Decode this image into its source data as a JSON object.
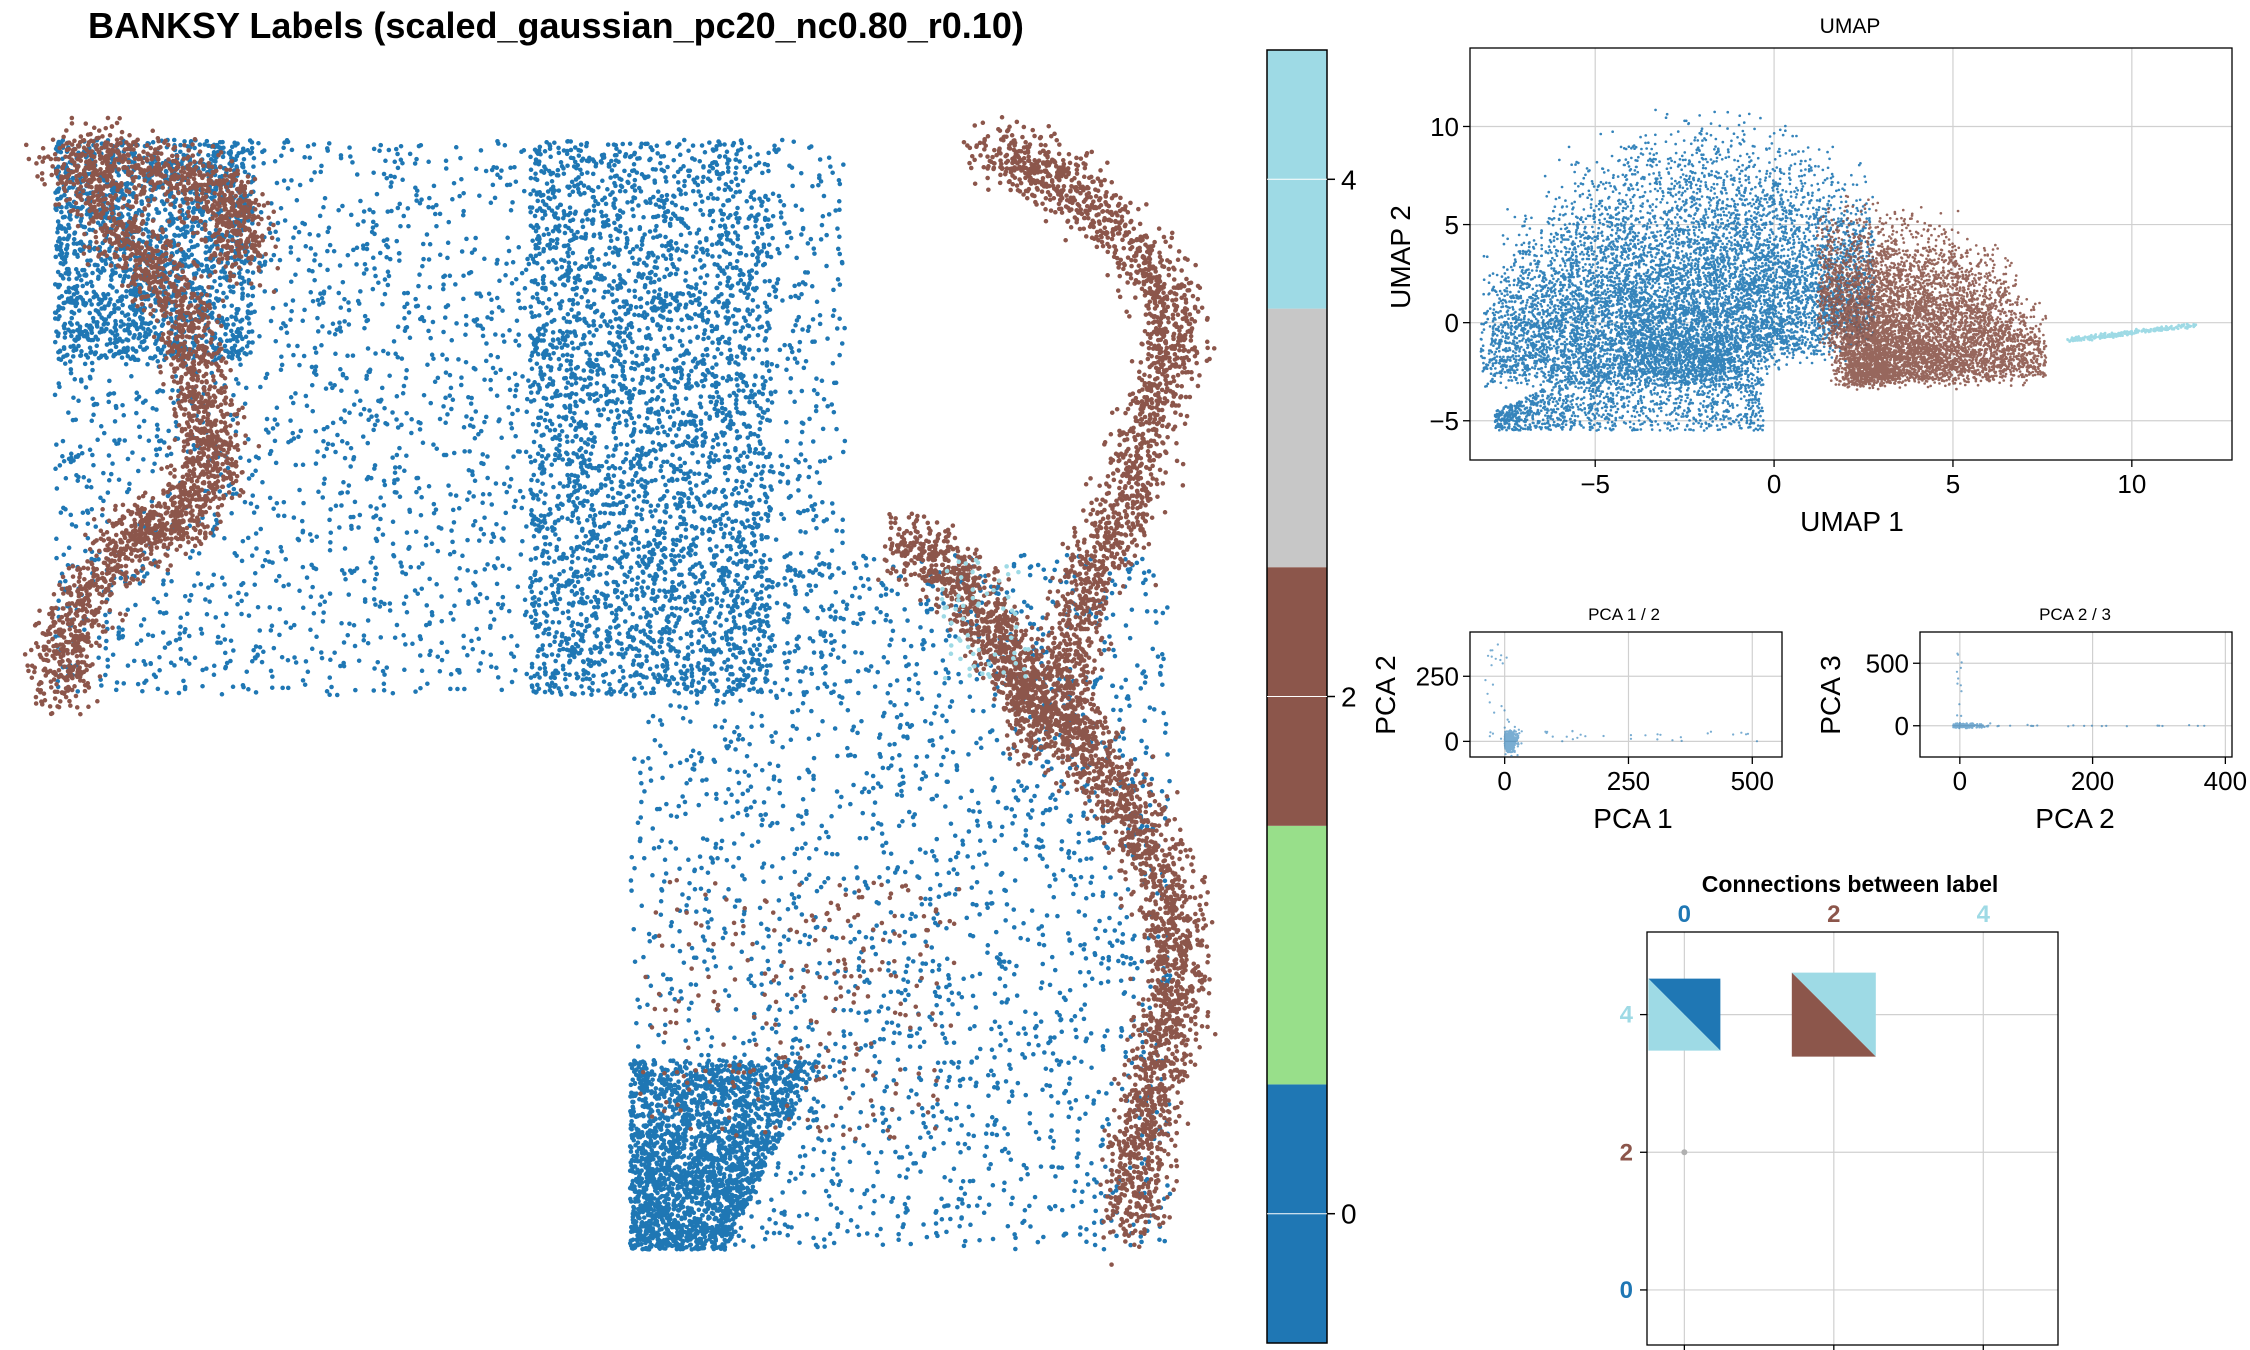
{
  "colors": {
    "label_0": "#1f77b4",
    "label_1": "#98df8a",
    "label_2": "#8c564b",
    "label_3": "#c7c7c7",
    "label_4": "#9edae5",
    "grid": "#d0d0d0"
  },
  "chart_data": [
    {
      "id": "spatial",
      "type": "scatter",
      "title": "BANKSY Labels (scaled_gaussian_pc20_nc0.80_r0.10)",
      "axes_visible": false,
      "series": [
        {
          "label": "0",
          "color": "#1f77b4"
        },
        {
          "label": "2",
          "color": "#8c564b"
        },
        {
          "label": "4",
          "color": "#9edae5"
        }
      ]
    },
    {
      "id": "colorbar",
      "type": "heatmap",
      "categories": [
        "0",
        "1",
        "2",
        "3",
        "4"
      ],
      "colors": [
        "#1f77b4",
        "#98df8a",
        "#8c564b",
        "#c7c7c7",
        "#9edae5"
      ],
      "ticks": [
        "0",
        "2",
        "4"
      ]
    },
    {
      "id": "umap",
      "type": "scatter",
      "title": "UMAP",
      "xlabel": "UMAP 1",
      "ylabel": "UMAP 2",
      "xlim": [
        -8.5,
        12.8
      ],
      "ylim": [
        -7.0,
        14.0
      ],
      "xticks": [
        -5,
        0,
        5,
        10
      ],
      "yticks": [
        -5,
        0,
        5,
        10
      ],
      "xtick_labels": [
        "−5",
        "0",
        "5",
        "10"
      ],
      "ytick_labels": [
        "−5",
        "0",
        "5",
        "10"
      ],
      "grid": true,
      "series": [
        {
          "label": "0",
          "color": "#1f77b4",
          "x_range": [
            -8.2,
            2.8
          ],
          "y_range": [
            -6.0,
            13.5
          ]
        },
        {
          "label": "2",
          "color": "#8c564b",
          "x_range": [
            1.2,
            7.6
          ],
          "y_range": [
            -4.5,
            6.5
          ]
        },
        {
          "label": "4",
          "color": "#9edae5",
          "x_range": [
            8.2,
            11.8
          ],
          "y_range": [
            -1.0,
            0.0
          ]
        }
      ]
    },
    {
      "id": "pca12",
      "type": "scatter",
      "title": "PCA 1 / 2",
      "xlabel": "PCA 1",
      "ylabel": "PCA 2",
      "xlim": [
        -70,
        560
      ],
      "ylim": [
        -60,
        420
      ],
      "xticks": [
        0,
        250,
        500
      ],
      "yticks": [
        0,
        250
      ],
      "grid": true
    },
    {
      "id": "pca23",
      "type": "scatter",
      "title": "PCA 2 / 3",
      "xlabel": "PCA 2",
      "ylabel": "PCA 3",
      "xlim": [
        -60,
        410
      ],
      "ylim": [
        -250,
        750
      ],
      "xticks": [
        0,
        200,
        400
      ],
      "yticks": [
        0,
        500
      ],
      "grid": true
    },
    {
      "id": "connections",
      "type": "heatmap",
      "title": "Connections between label",
      "xlim": [
        -0.5,
        5
      ],
      "ylim": [
        -0.8,
        5.2
      ],
      "xticks": [
        "0",
        "2",
        "4"
      ],
      "yticks": [
        "0",
        "2",
        "4"
      ],
      "tick_colors": [
        "#1f77b4",
        "#8c564b",
        "#9edae5"
      ],
      "grid": true,
      "links": [
        {
          "from": "0",
          "to": "4"
        },
        {
          "from": "2",
          "to": "4"
        },
        {
          "from": "0",
          "to": "2"
        }
      ]
    }
  ]
}
